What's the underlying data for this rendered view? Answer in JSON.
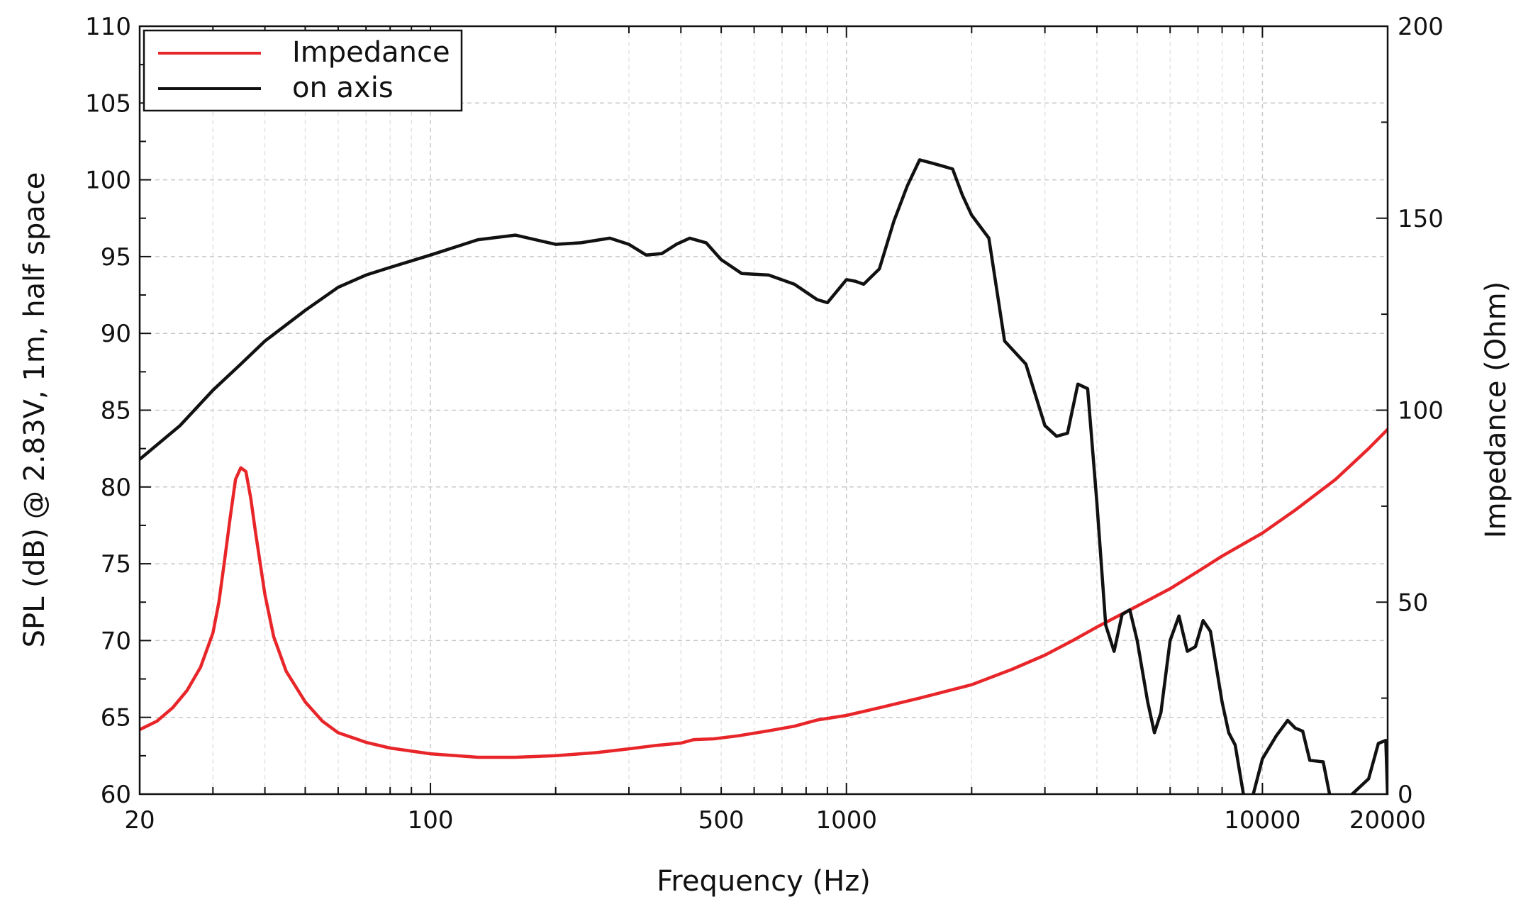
{
  "chart_data": {
    "type": "line",
    "xlabel": "Frequency (Hz)",
    "ylabel": "SPL (dB) @ 2.83V, 1m, half space",
    "y2label": "Impedance (Ohm)",
    "xscale": "log",
    "xlim": [
      20,
      20000
    ],
    "ylim": [
      60,
      110
    ],
    "y2lim": [
      0,
      200
    ],
    "grid": true,
    "legend_position": "top-left",
    "x_ticks": [
      20,
      100,
      500,
      1000,
      10000,
      20000
    ],
    "x_tick_labels": [
      "20",
      "100",
      "500",
      "1000",
      "10000",
      "20000"
    ],
    "y_ticks": [
      60,
      65,
      70,
      75,
      80,
      85,
      90,
      95,
      100,
      105,
      110
    ],
    "y_tick_labels": [
      "60",
      "65",
      "70",
      "75",
      "80",
      "85",
      "90",
      "95",
      "100",
      "105",
      "110"
    ],
    "y2_ticks": [
      0,
      50,
      100,
      150,
      200
    ],
    "y2_tick_labels": [
      "0",
      "50",
      "100",
      "150",
      "200"
    ],
    "series": [
      {
        "name": "Impedance",
        "axis": "right",
        "color": "#e8262a",
        "points": [
          [
            20,
            16.8
          ],
          [
            22,
            19
          ],
          [
            24,
            22.5
          ],
          [
            26,
            27
          ],
          [
            28,
            33
          ],
          [
            30,
            42
          ],
          [
            31,
            50
          ],
          [
            32,
            61
          ],
          [
            33,
            72
          ],
          [
            34,
            82
          ],
          [
            35,
            85
          ],
          [
            36,
            84
          ],
          [
            37,
            77
          ],
          [
            38,
            68
          ],
          [
            40,
            52
          ],
          [
            42,
            41
          ],
          [
            45,
            32
          ],
          [
            50,
            24
          ],
          [
            55,
            19
          ],
          [
            60,
            16
          ],
          [
            70,
            13.5
          ],
          [
            80,
            12
          ],
          [
            100,
            10.5
          ],
          [
            130,
            9.6
          ],
          [
            160,
            9.6
          ],
          [
            200,
            10
          ],
          [
            250,
            10.8
          ],
          [
            300,
            11.8
          ],
          [
            350,
            12.7
          ],
          [
            400,
            13.3
          ],
          [
            430,
            14.2
          ],
          [
            480,
            14.4
          ],
          [
            550,
            15.2
          ],
          [
            650,
            16.5
          ],
          [
            750,
            17.7
          ],
          [
            850,
            19.3
          ],
          [
            1000,
            20.5
          ],
          [
            1200,
            22.5
          ],
          [
            1500,
            25
          ],
          [
            2000,
            28.5
          ],
          [
            2500,
            32.5
          ],
          [
            3000,
            36.2
          ],
          [
            3500,
            40
          ],
          [
            4000,
            43.5
          ],
          [
            5000,
            49
          ],
          [
            6000,
            53.5
          ],
          [
            7000,
            58
          ],
          [
            8000,
            62
          ],
          [
            10000,
            68
          ],
          [
            12000,
            74
          ],
          [
            15000,
            82
          ],
          [
            18000,
            90
          ],
          [
            20000,
            95
          ]
        ]
      },
      {
        "name": "on axis",
        "axis": "left",
        "color": "#111111",
        "points": [
          [
            20,
            81.8
          ],
          [
            25,
            84
          ],
          [
            30,
            86.3
          ],
          [
            35,
            88
          ],
          [
            40,
            89.5
          ],
          [
            50,
            91.5
          ],
          [
            60,
            93
          ],
          [
            70,
            93.8
          ],
          [
            80,
            94.3
          ],
          [
            100,
            95.1
          ],
          [
            130,
            96.1
          ],
          [
            160,
            96.4
          ],
          [
            200,
            95.8
          ],
          [
            230,
            95.9
          ],
          [
            270,
            96.2
          ],
          [
            300,
            95.8
          ],
          [
            330,
            95.1
          ],
          [
            360,
            95.2
          ],
          [
            390,
            95.8
          ],
          [
            420,
            96.2
          ],
          [
            460,
            95.9
          ],
          [
            500,
            94.8
          ],
          [
            560,
            93.9
          ],
          [
            650,
            93.8
          ],
          [
            750,
            93.2
          ],
          [
            850,
            92.2
          ],
          [
            900,
            92
          ],
          [
            1000,
            93.5
          ],
          [
            1050,
            93.4
          ],
          [
            1100,
            93.2
          ],
          [
            1200,
            94.2
          ],
          [
            1300,
            97.3
          ],
          [
            1400,
            99.6
          ],
          [
            1500,
            101.3
          ],
          [
            1600,
            101.1
          ],
          [
            1700,
            100.9
          ],
          [
            1800,
            100.7
          ],
          [
            1900,
            99
          ],
          [
            2000,
            97.7
          ],
          [
            2200,
            96.2
          ],
          [
            2400,
            89.5
          ],
          [
            2700,
            88
          ],
          [
            3000,
            84
          ],
          [
            3200,
            83.3
          ],
          [
            3400,
            83.5
          ],
          [
            3600,
            86.7
          ],
          [
            3800,
            86.4
          ],
          [
            4000,
            79
          ],
          [
            4200,
            71
          ],
          [
            4400,
            69.3
          ],
          [
            4600,
            71.7
          ],
          [
            4800,
            72
          ],
          [
            5000,
            70
          ],
          [
            5300,
            66
          ],
          [
            5500,
            64
          ],
          [
            5700,
            65.3
          ],
          [
            6000,
            70
          ],
          [
            6300,
            71.6
          ],
          [
            6600,
            69.3
          ],
          [
            6900,
            69.6
          ],
          [
            7200,
            71.3
          ],
          [
            7500,
            70.6
          ],
          [
            8000,
            66
          ],
          [
            8300,
            64
          ],
          [
            8600,
            63.2
          ],
          [
            9000,
            60
          ],
          [
            9300,
            59
          ],
          [
            10000,
            62.3
          ],
          [
            10800,
            63.8
          ],
          [
            11500,
            64.8
          ],
          [
            12000,
            64.3
          ],
          [
            12500,
            64.1
          ],
          [
            13000,
            62.2
          ],
          [
            14000,
            62.1
          ],
          [
            14500,
            60
          ],
          [
            15000,
            59
          ],
          [
            18000,
            61
          ],
          [
            19000,
            63.3
          ],
          [
            19800,
            63.5
          ],
          [
            20000,
            59.8
          ]
        ]
      }
    ]
  }
}
